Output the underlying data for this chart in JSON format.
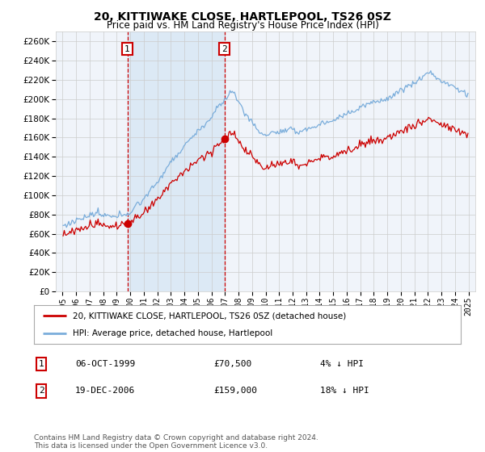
{
  "title": "20, KITTIWAKE CLOSE, HARTLEPOOL, TS26 0SZ",
  "subtitle": "Price paid vs. HM Land Registry's House Price Index (HPI)",
  "ylim": [
    0,
    270000
  ],
  "yticks": [
    0,
    20000,
    40000,
    60000,
    80000,
    100000,
    120000,
    140000,
    160000,
    180000,
    200000,
    220000,
    240000,
    260000
  ],
  "sale1_year": 1999.79,
  "sale1_price": 70500,
  "sale2_year": 2006.96,
  "sale2_price": 159000,
  "sale1_text": "06-OCT-1999",
  "sale1_amount": "£70,500",
  "sale1_hpi": "4% ↓ HPI",
  "sale2_text": "19-DEC-2006",
  "sale2_amount": "£159,000",
  "sale2_hpi": "18% ↓ HPI",
  "legend_line1": "20, KITTIWAKE CLOSE, HARTLEPOOL, TS26 0SZ (detached house)",
  "legend_line2": "HPI: Average price, detached house, Hartlepool",
  "footer": "Contains HM Land Registry data © Crown copyright and database right 2024.\nThis data is licensed under the Open Government Licence v3.0.",
  "line_color_sale": "#cc0000",
  "line_color_hpi": "#7aaddb",
  "shade_color": "#dce9f5",
  "background_color": "#ffffff",
  "grid_color": "#cccccc",
  "plot_bg": "#f0f4fa"
}
